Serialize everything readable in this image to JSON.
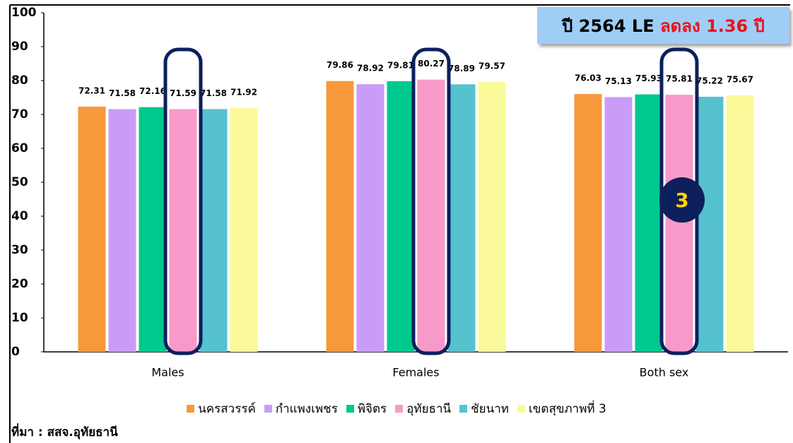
{
  "chart_data": {
    "type": "bar",
    "categories": [
      "Males",
      "Females",
      "Both sex"
    ],
    "series": [
      {
        "name": "นครสวรรค์",
        "color": "#f7993a",
        "values": [
          72.31,
          79.86,
          76.03
        ]
      },
      {
        "name": "กำแพงเพชร",
        "color": "#c89cf7",
        "values": [
          71.58,
          78.92,
          75.13
        ]
      },
      {
        "name": "พิจิตร",
        "color": "#00c98f",
        "values": [
          72.16,
          79.81,
          75.93
        ]
      },
      {
        "name": "อุทัยธานี",
        "color": "#f79ac9",
        "values": [
          71.59,
          80.27,
          75.81
        ]
      },
      {
        "name": "ชัยนาท",
        "color": "#55c2cd",
        "values": [
          71.58,
          78.89,
          75.22
        ]
      },
      {
        "name": "เขตสุขภาพที่ 3",
        "color": "#fbfa9a",
        "values": [
          71.92,
          79.57,
          75.67
        ]
      }
    ],
    "ylim": [
      0,
      100
    ],
    "yticks": [
      0,
      10,
      20,
      30,
      40,
      50,
      60,
      70,
      80,
      90,
      100
    ],
    "annotation": {
      "text": "ปี 2564 LE ",
      "highlight": "ลดลง 1.36 ปี",
      "highlight_color": "#e8141c"
    },
    "badge": "3",
    "source": "ที่มา : สสจ.อุทัยธานี",
    "legend": "bottom"
  }
}
